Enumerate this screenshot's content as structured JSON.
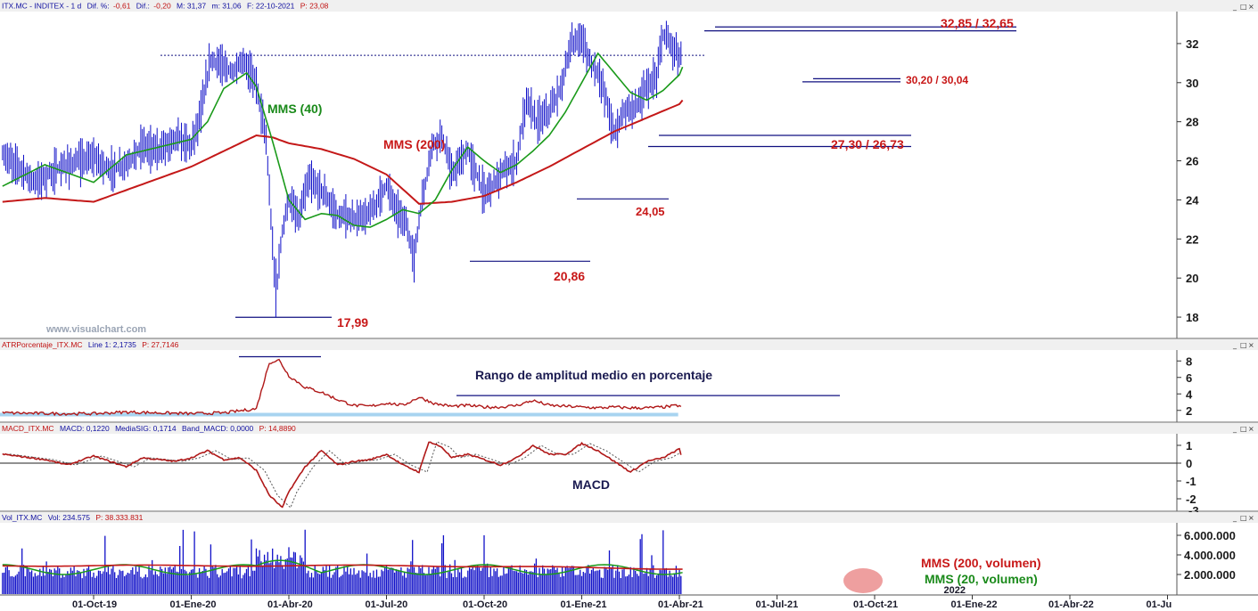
{
  "colors": {
    "price": "#1010c8",
    "mms40": "#1a9a1a",
    "mms200": "#c41818",
    "annot_red": "#c81818",
    "annot_green": "#1a8a1a",
    "annot_dark": "#1a1a50",
    "hline": "#101080",
    "macd": "#b01818",
    "atr_band": "#a8d4f0"
  },
  "panes": {
    "price": {
      "header": {
        "sym": "ITX.MC - INDITEX - 1 d",
        "dif_pct_label": "Dif. %:",
        "dif_pct": "-0,61",
        "dif_label": "Dif.:",
        "dif": "-0,20",
        "max": "M: 31,37",
        "min": "m: 31,06",
        "date": "F: 22-10-2021",
        "last": "P: 23,08"
      },
      "watermark": "www.visualchart.com"
    },
    "atr": {
      "header": {
        "name": "ATRPorcentaje_ITX.MC",
        "v1": "Line 1: 2,1735",
        "v2": "P: 27,7146"
      },
      "annotation": "Rango de amplitud medio en porcentaje"
    },
    "macd": {
      "header": {
        "name": "MACD_ITX.MC",
        "v1": "MACD: 0,1220",
        "v2": "MediaSIG: 0,1714",
        "v3": "Band_MACD: 0,0000",
        "v4": "P: 14,8890"
      },
      "annotation": "MACD"
    },
    "vol": {
      "header": {
        "name": "Vol_ITX.MC",
        "v1": "Vol: 234.575",
        "v2": "P: 38.333.831"
      },
      "annotations": [
        "MMS (200, volumen)",
        "MMS (20, volumen)"
      ]
    }
  },
  "window_buttons": [
    "_",
    "□",
    "×"
  ],
  "chart_data": [
    {
      "type": "line",
      "name": "price",
      "x_ticks": [
        "01-Oct-19",
        "01-Ene-20",
        "01-Abr-20",
        "01-Jul-20",
        "01-Oct-20",
        "01-Ene-21",
        "01-Abr-21",
        "01-Jul-21",
        "01-Oct-21",
        "01-Ene-22",
        "01-Abr-22",
        "01-Ju"
      ],
      "extra_x_label": "2022",
      "ylim": [
        17,
        33.5
      ],
      "y_ticks": [
        "18",
        "20",
        "22",
        "24",
        "26",
        "28",
        "30",
        "32"
      ],
      "grid": false,
      "series_price_approx": [
        [
          0,
          26.2
        ],
        [
          0.5,
          25.5
        ],
        [
          1,
          25.8
        ],
        [
          1.5,
          26.8
        ],
        [
          2,
          26.5
        ],
        [
          2.5,
          27.2
        ],
        [
          3,
          26.8
        ],
        [
          3.3,
          28.5
        ],
        [
          3.6,
          31.2
        ],
        [
          4,
          30.8
        ],
        [
          4.3,
          30.5
        ],
        [
          4.6,
          31.1
        ],
        [
          5,
          30
        ],
        [
          5.3,
          27
        ],
        [
          5.6,
          19
        ],
        [
          5.8,
          22.5
        ],
        [
          6,
          24
        ],
        [
          6.3,
          23
        ],
        [
          6.6,
          25
        ],
        [
          7,
          24.5
        ],
        [
          7.5,
          23.2
        ],
        [
          8,
          23
        ],
        [
          8.5,
          23.3
        ],
        [
          9,
          24.8
        ],
        [
          9.3,
          23.5
        ],
        [
          9.6,
          22.8
        ],
        [
          9.85,
          20.9
        ],
        [
          10,
          23
        ],
        [
          10.4,
          26.8
        ],
        [
          10.7,
          27.3
        ],
        [
          11,
          25.3
        ],
        [
          11.5,
          26.5
        ],
        [
          12,
          24.3
        ],
        [
          12.5,
          25.3
        ],
        [
          13,
          26
        ],
        [
          13.3,
          29.2
        ],
        [
          13.6,
          28
        ],
        [
          14,
          28.5
        ],
        [
          14.3,
          29.5
        ],
        [
          14.7,
          32
        ],
        [
          15,
          32.3
        ],
        [
          15.2,
          31.2
        ],
        [
          15.5,
          30.5
        ],
        [
          15.7,
          29.5
        ],
        [
          16,
          27.4
        ],
        [
          16.3,
          28.6
        ],
        [
          16.7,
          28.8
        ],
        [
          17,
          29.8
        ],
        [
          17.3,
          30.2
        ],
        [
          17.5,
          32.5
        ],
        [
          17.8,
          31.8
        ],
        [
          18,
          31.4
        ],
        [
          18.1,
          31.2
        ]
      ],
      "series": [
        {
          "name": "MMS (40)",
          "values_approx": [
            [
              0,
              24.9
            ],
            [
              1,
              26.3
            ],
            [
              2,
              26.7
            ],
            [
              3,
              27.1
            ],
            [
              3.5,
              28
            ],
            [
              4,
              29.7
            ],
            [
              4.7,
              30.5
            ],
            [
              5,
              29.8
            ],
            [
              5.5,
              27
            ],
            [
              6,
              24
            ],
            [
              6.5,
              23
            ],
            [
              7,
              23.3
            ],
            [
              7.5,
              23.2
            ],
            [
              8,
              22.7
            ],
            [
              8.5,
              22.6
            ],
            [
              9,
              23
            ],
            [
              9.5,
              23.5
            ],
            [
              10,
              23.3
            ],
            [
              10.5,
              24
            ],
            [
              11,
              25.5
            ],
            [
              11.5,
              26.7
            ],
            [
              12,
              26
            ],
            [
              12.5,
              25.4
            ],
            [
              13,
              25.8
            ],
            [
              13.5,
              26.5
            ],
            [
              14,
              27.3
            ],
            [
              14.5,
              28.5
            ],
            [
              15,
              30
            ],
            [
              15.5,
              31.5
            ],
            [
              16,
              30.5
            ],
            [
              16.5,
              29.5
            ],
            [
              17,
              29.1
            ],
            [
              17.5,
              29.6
            ],
            [
              18,
              30.4
            ],
            [
              18.1,
              30.8
            ]
          ]
        },
        {
          "name": "MMS (200)",
          "values_approx": [
            [
              0,
              23.9
            ],
            [
              1,
              24.5
            ],
            [
              2,
              25.1
            ],
            [
              3,
              25.7
            ],
            [
              4,
              26.5
            ],
            [
              5,
              27.3
            ],
            [
              5.5,
              27.2
            ],
            [
              6,
              26.9
            ],
            [
              7,
              26.6
            ],
            [
              8,
              26.1
            ],
            [
              9,
              25.3
            ],
            [
              10,
              23.8
            ],
            [
              11,
              23.9
            ],
            [
              12,
              24.2
            ],
            [
              13,
              24.9
            ],
            [
              14,
              25.7
            ],
            [
              15,
              26.6
            ],
            [
              16,
              27.5
            ],
            [
              17,
              28.2
            ],
            [
              18,
              28.9
            ],
            [
              18.1,
              29.1
            ]
          ]
        }
      ],
      "horizontal_levels": [
        {
          "label": "32,85 / 32,65",
          "values": [
            32.85,
            32.65
          ]
        },
        {
          "label": "30,20 / 30,04",
          "values": [
            30.2,
            30.04
          ]
        },
        {
          "label": "27,30 / 26,73",
          "values": [
            27.3,
            26.73
          ]
        },
        {
          "label": "24,05",
          "values": [
            24.05
          ]
        },
        {
          "label": "20,86",
          "values": [
            20.86
          ]
        },
        {
          "label": "17,99",
          "values": [
            17.99
          ]
        }
      ],
      "resistance_dotted": 31.4,
      "series_labels": [
        "MMS (40)",
        "MMS (200)"
      ]
    },
    {
      "type": "line",
      "name": "ATRPorcentaje",
      "ylim": [
        1,
        9
      ],
      "y_ticks": [
        "2",
        "4",
        "6",
        "8"
      ],
      "values_approx": [
        [
          0,
          1.6
        ],
        [
          1,
          1.8
        ],
        [
          2,
          1.7
        ],
        [
          3,
          1.6
        ],
        [
          4,
          1.7
        ],
        [
          5,
          2.2
        ],
        [
          5.4,
          7.8
        ],
        [
          5.7,
          8.1
        ],
        [
          6,
          6.2
        ],
        [
          6.5,
          4.8
        ],
        [
          7,
          4.2
        ],
        [
          7.5,
          3.3
        ],
        [
          8,
          2.6
        ],
        [
          8.5,
          2.5
        ],
        [
          9,
          2.9
        ],
        [
          9.5,
          2.6
        ],
        [
          10,
          3.6
        ],
        [
          10.5,
          2.8
        ],
        [
          11,
          2.5
        ],
        [
          11.5,
          2.6
        ],
        [
          12,
          2.4
        ],
        [
          12.5,
          2.4
        ],
        [
          13,
          2.6
        ],
        [
          13.5,
          3.2
        ],
        [
          14,
          2.6
        ],
        [
          14.5,
          2.5
        ],
        [
          15,
          2.4
        ],
        [
          15.5,
          2.3
        ],
        [
          16,
          2.4
        ],
        [
          16.5,
          2.3
        ],
        [
          17,
          2.3
        ],
        [
          17.5,
          2.4
        ],
        [
          18,
          2.6
        ],
        [
          18.1,
          2.2
        ]
      ],
      "band_value": 1.6
    },
    {
      "type": "line",
      "name": "MACD",
      "ylim": [
        -2.6,
        1.5
      ],
      "y_ticks": [
        "1",
        "0",
        "-1",
        "-2"
      ],
      "extra_tick": "-3",
      "zero_line": 0,
      "values_approx": [
        [
          0,
          0.4
        ],
        [
          0.5,
          0.1
        ],
        [
          1,
          -0.2
        ],
        [
          1.5,
          0.3
        ],
        [
          2,
          0.2
        ],
        [
          2.5,
          0.1
        ],
        [
          3,
          0.3
        ],
        [
          3.5,
          0.7
        ],
        [
          4,
          0.2
        ],
        [
          4.5,
          0.3
        ],
        [
          5,
          -0.4
        ],
        [
          5.4,
          -1.8
        ],
        [
          5.8,
          -2.5
        ],
        [
          6,
          -1.6
        ],
        [
          6.5,
          -0.2
        ],
        [
          7,
          0.7
        ],
        [
          7.5,
          -0.1
        ],
        [
          8,
          0.1
        ],
        [
          8.5,
          0.2
        ],
        [
          9,
          0.5
        ],
        [
          9.5,
          -0.1
        ],
        [
          10,
          -0.5
        ],
        [
          10.3,
          1.2
        ],
        [
          10.7,
          0.9
        ],
        [
          11,
          0.3
        ],
        [
          11.5,
          0.5
        ],
        [
          12,
          0.2
        ],
        [
          12.5,
          -0.1
        ],
        [
          13,
          0.3
        ],
        [
          13.5,
          1
        ],
        [
          14,
          0.5
        ],
        [
          14.5,
          0.5
        ],
        [
          15,
          1.1
        ],
        [
          15.5,
          0.7
        ],
        [
          16,
          0.1
        ],
        [
          16.5,
          -0.5
        ],
        [
          17,
          0.1
        ],
        [
          17.5,
          0.3
        ],
        [
          18,
          0.8
        ],
        [
          18.1,
          0.1
        ]
      ]
    },
    {
      "type": "bar",
      "name": "Volumen",
      "ylim": [
        0,
        7000000
      ],
      "y_ticks": [
        "6.000.000",
        "4.000.000",
        "2.000.000"
      ],
      "series": [
        {
          "name": "MMS (200, volumen)",
          "value_approx": 2750000
        },
        {
          "name": "MMS (20, volumen)",
          "value_approx": 2400000
        }
      ]
    }
  ]
}
